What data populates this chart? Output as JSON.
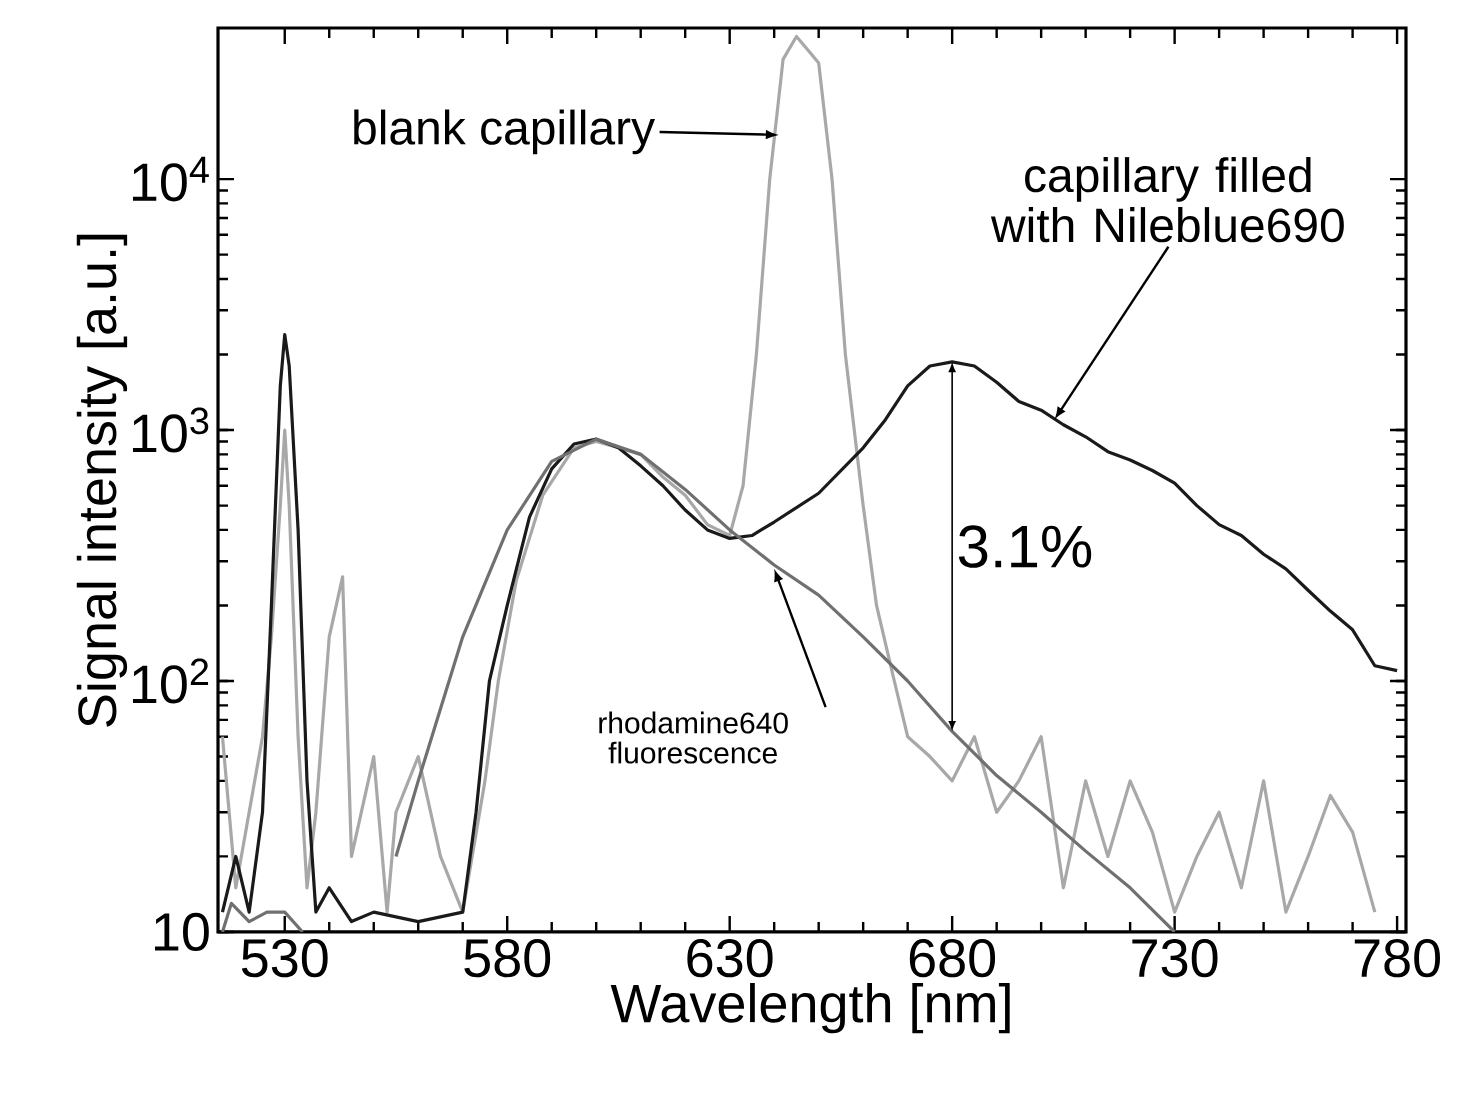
{
  "chart_data": {
    "type": "line",
    "xlabel": "Wavelength [nm]",
    "ylabel": "Signal intensity [a.u.]",
    "xlim": [
      515,
      782
    ],
    "xticks": [
      530,
      580,
      630,
      680,
      730,
      780
    ],
    "ylim": [
      10,
      40000
    ],
    "yticks": [
      10,
      {
        "value": 100,
        "label": "10$^{2}$"
      },
      {
        "value": 1000,
        "label": "10$^{3}$"
      },
      {
        "value": 10000,
        "label": "10$^{4}$"
      }
    ],
    "log": "y",
    "grid": false,
    "marker": "none",
    "line_style": "solid",
    "series": [
      {
        "color": "#a8a8a8",
        "x": [
          516,
          519,
          522,
          525,
          527,
          529,
          530,
          531,
          533,
          535,
          537,
          540,
          543,
          545,
          550,
          553,
          555,
          560,
          565,
          570,
          575,
          578,
          582,
          588,
          595,
          600,
          605,
          610,
          615,
          620,
          625,
          630,
          633,
          636,
          639,
          642,
          645,
          648,
          650,
          653,
          656,
          660,
          663,
          667,
          670,
          675,
          680,
          685,
          690,
          695,
          700,
          705,
          710,
          715,
          720,
          725,
          730,
          735,
          740,
          745,
          750,
          755,
          760,
          765,
          770,
          775
        ],
        "values": [
          60,
          15,
          30,
          60,
          150,
          500,
          1000,
          500,
          60,
          15,
          30,
          150,
          260,
          20,
          50,
          12,
          30,
          50,
          20,
          12,
          40,
          100,
          250,
          550,
          850,
          900,
          850,
          800,
          650,
          550,
          420,
          380,
          600,
          2000,
          10000,
          30000,
          37000,
          32000,
          29000,
          10000,
          2000,
          500,
          200,
          100,
          60,
          50,
          40,
          60,
          30,
          40,
          60,
          15,
          40,
          20,
          40,
          25,
          12,
          20,
          30,
          15,
          40,
          12,
          20,
          35,
          25,
          12
        ]
      },
      {
        "color": "#1a1a1a",
        "x": [
          516,
          519,
          522,
          525,
          527,
          529,
          530,
          531,
          533,
          535,
          537,
          540,
          545,
          550,
          560,
          570,
          573,
          576,
          580,
          585,
          590,
          595,
          600,
          605,
          610,
          615,
          620,
          625,
          630,
          635,
          640,
          650,
          660,
          665,
          670,
          675,
          680,
          685,
          690,
          695,
          700,
          705,
          710,
          715,
          720,
          725,
          730,
          735,
          740,
          745,
          750,
          755,
          760,
          765,
          770,
          775,
          780
        ],
        "values": [
          12,
          20,
          12,
          30,
          200,
          1500,
          2400,
          1800,
          400,
          40,
          12,
          15,
          11,
          12,
          11,
          12,
          30,
          100,
          200,
          450,
          700,
          880,
          920,
          850,
          720,
          600,
          480,
          400,
          370,
          380,
          430,
          560,
          850,
          1100,
          1500,
          1800,
          1870,
          1800,
          1550,
          1300,
          1200,
          1050,
          940,
          820,
          760,
          690,
          615,
          500,
          420,
          380,
          320,
          280,
          230,
          190,
          160,
          115,
          110
        ]
      },
      {
        "color": "#707070",
        "x": [
          516,
          518,
          522,
          526,
          530,
          534,
          548,
          555,
          560,
          570,
          580,
          590,
          600,
          610,
          620,
          630,
          640,
          650,
          660,
          670,
          680,
          690,
          700,
          710,
          720,
          730
        ],
        "values": [
          10,
          13,
          11,
          12,
          12,
          10,
          null,
          20,
          40,
          150,
          400,
          750,
          920,
          800,
          580,
          400,
          290,
          220,
          150,
          100,
          63,
          42,
          30,
          21,
          15,
          10
        ]
      }
    ],
    "annotations": [
      {
        "text": "blank capillary",
        "x": 641,
        "y": 15000
      },
      {
        "text": "capillary filled with Nileblue690",
        "x": 703,
        "y": 1100
      },
      {
        "text": "rhodamine640 fluorescence",
        "x": 640,
        "y": 280
      },
      {
        "text": "3.1%",
        "x": 680,
        "y": 1870
      }
    ]
  }
}
